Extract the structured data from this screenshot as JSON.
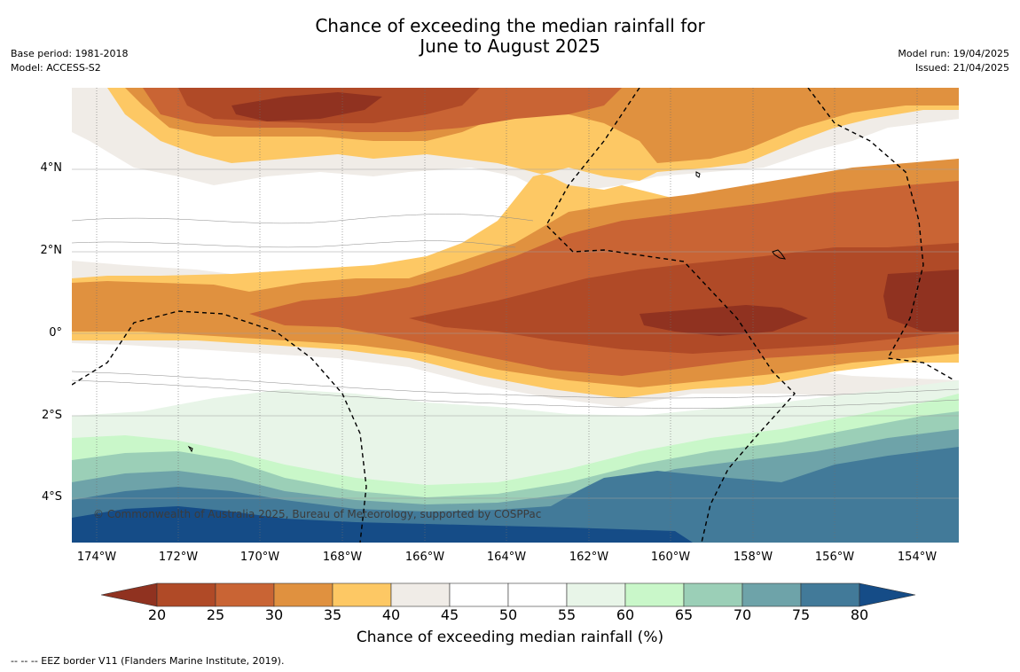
{
  "title": {
    "line1": "Chance of exceeding the median rainfall for",
    "line2": "June to August 2025"
  },
  "meta_left": {
    "base_period": "Base period: 1981-2018",
    "model": "Model: ACCESS-S2"
  },
  "meta_right": {
    "model_run": "Model run: 19/04/2025",
    "issued": "Issued: 21/04/2025"
  },
  "map": {
    "copyright": "© Commonwealth of Australia 2025, Bureau of Meteorology, supported by COSPPac",
    "lat_ticks": [
      "4°N",
      "2°N",
      "0°",
      "2°S",
      "4°S"
    ],
    "lon_ticks": [
      "174°W",
      "172°W",
      "170°W",
      "168°W",
      "166°W",
      "164°W",
      "162°W",
      "160°W",
      "158°W",
      "156°W",
      "154°W"
    ]
  },
  "colorbar": {
    "title": "Chance of exceeding median rainfall (%)",
    "tick_labels": [
      "20",
      "25",
      "30",
      "35",
      "40",
      "45",
      "50",
      "55",
      "60",
      "65",
      "70",
      "75",
      "80"
    ],
    "colors": {
      "under20": "#903220",
      "c20_25": "#b04a27",
      "c25_30": "#c96434",
      "c30_35": "#e0913f",
      "c35_40": "#fdc864",
      "c40_45": "#f0ece7",
      "c45_50": "#ffffff",
      "c50_55": "#ffffff",
      "c55_60": "#e8f5e8",
      "c60_65": "#c9f7c9",
      "c65_70": "#9bcfb7",
      "c70_75": "#6ea3a9",
      "c75_80": "#427a99",
      "over80": "#154c87"
    }
  },
  "footer": "--  --  -- EEZ border V11 (Flanders Marine Institute, 2019)."
}
